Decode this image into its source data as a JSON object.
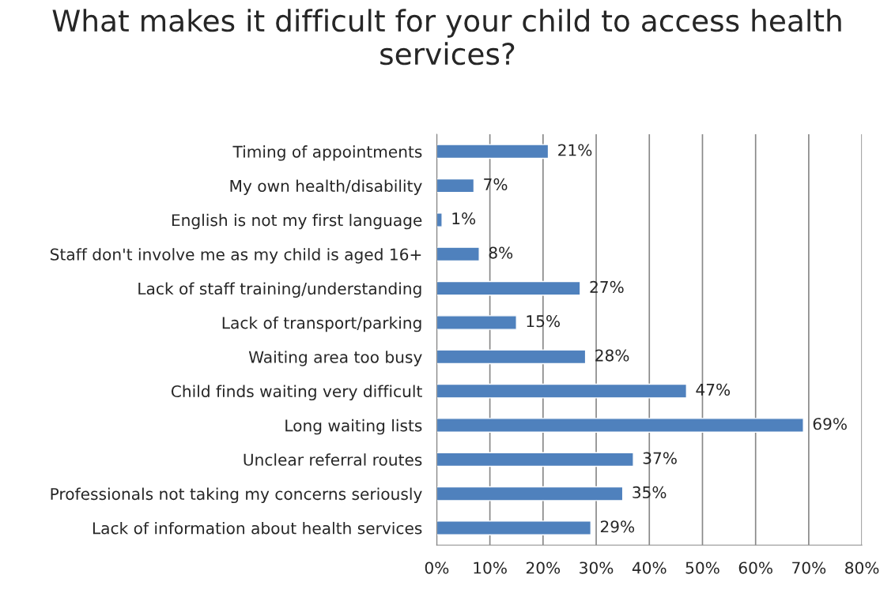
{
  "chart_data": {
    "type": "bar",
    "orientation": "horizontal",
    "title": "What makes it difficult for your child to access health services?",
    "categories": [
      "Timing of appointments",
      "My own health/disability",
      "English is not my first language",
      "Staff don't involve me as my child is aged 16+",
      "Lack of staff training/understanding",
      "Lack of transport/parking",
      "Waiting area too busy",
      "Child finds waiting very difficult",
      "Long waiting lists",
      "Unclear referral routes",
      "Professionals not taking my concerns seriously",
      "Lack of information about health services"
    ],
    "values": [
      21,
      7,
      1,
      8,
      27,
      15,
      28,
      47,
      69,
      37,
      35,
      29
    ],
    "value_labels": [
      "21%",
      "7%",
      "1%",
      "8%",
      "27%",
      "15%",
      "28%",
      "47%",
      "69%",
      "37%",
      "35%",
      "29%"
    ],
    "color": "#4f81bd",
    "xlim": [
      0,
      80
    ],
    "xticks": [
      {
        "value": 0,
        "label": "0%"
      },
      {
        "value": 10,
        "label": "10%"
      },
      {
        "value": 20,
        "label": "20%"
      },
      {
        "value": 30,
        "label": "30%"
      },
      {
        "value": 40,
        "label": "40%"
      },
      {
        "value": 50,
        "label": "50%"
      },
      {
        "value": 60,
        "label": "60%"
      },
      {
        "value": 70,
        "label": "70%"
      },
      {
        "value": 80,
        "label": "80%"
      }
    ],
    "grid": "x",
    "legend": false
  }
}
